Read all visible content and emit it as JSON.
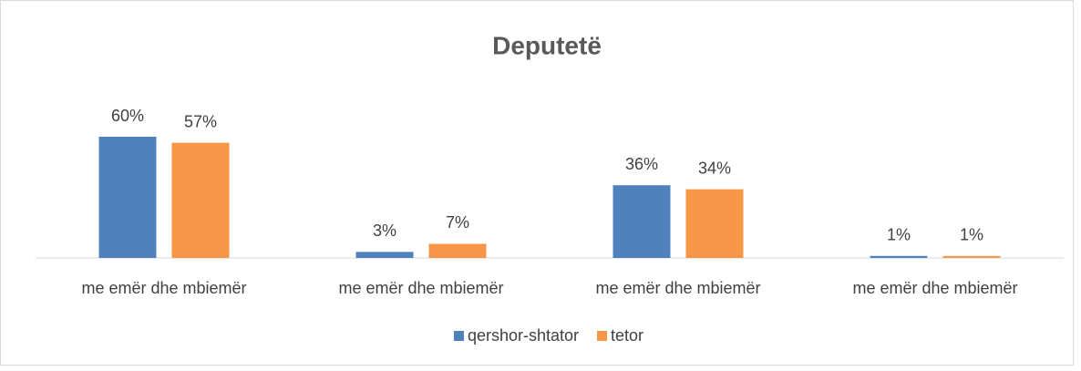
{
  "chart_data": {
    "type": "bar",
    "title": "Deputetë",
    "categories": [
      "me emër dhe mbiemër",
      "me emër dhe mbiemër",
      "me emër dhe mbiemër",
      "me emër dhe mbiemër"
    ],
    "series": [
      {
        "name": "qershor-shtator",
        "color": "#4f81bd",
        "values": [
          60,
          3,
          36,
          1
        ],
        "value_labels": [
          "60%",
          "3%",
          "36%",
          "1%"
        ]
      },
      {
        "name": "tetor",
        "color": "#f79646",
        "values": [
          57,
          7,
          34,
          1
        ],
        "value_labels": [
          "57%",
          "7%",
          "34%",
          "1%"
        ]
      }
    ],
    "legend": "bottom"
  }
}
